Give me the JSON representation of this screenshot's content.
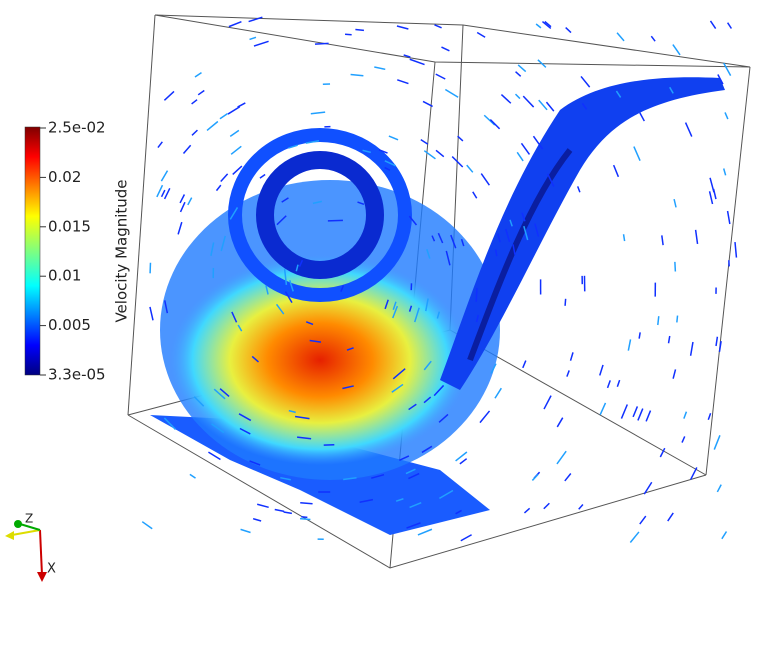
{
  "colorbar": {
    "title": "Velocity Magnitude",
    "labels": [
      "2.5e-02",
      "0.02",
      "0.015",
      "0.01",
      "0.005",
      "3.3e-05"
    ]
  },
  "axes_triad": {
    "z": "Z",
    "x": "X"
  }
}
